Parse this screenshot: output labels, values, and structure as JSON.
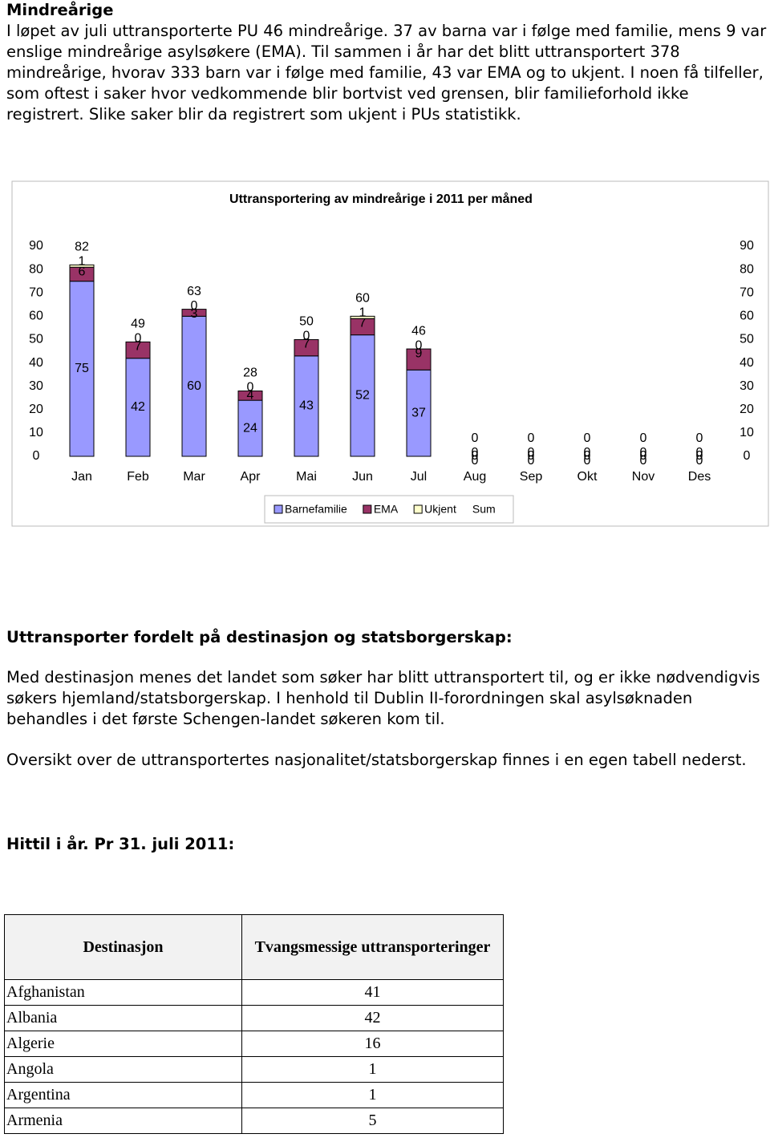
{
  "heading1": "Mindreårige",
  "paragraph1": "I løpet av juli uttransporterte PU 46 mindreårige. 37 av barna var i følge med familie, mens 9 var enslige mindreårige asylsøkere (EMA). Til sammen i år har det blitt uttransportert 378 mindreårige, hvorav 333 barn var i følge med familie, 43 var EMA og to ukjent. I noen få tilfeller, som oftest i saker hvor vedkommende blir bortvist ved grensen, blir familieforhold ikke registrert. Slike saker blir da registrert som ukjent i PUs statistikk.",
  "chart_data": {
    "type": "stacked-bar",
    "title": "Uttransportering av mindreårige i 2011 per måned",
    "categories": [
      "Jan",
      "Feb",
      "Mar",
      "Apr",
      "Mai",
      "Jun",
      "Jul",
      "Aug",
      "Sep",
      "Okt",
      "Nov",
      "Des"
    ],
    "series": [
      {
        "name": "Barnefamilie",
        "color": "#9999ff",
        "values": [
          75,
          42,
          60,
          24,
          43,
          52,
          37,
          0,
          0,
          0,
          0,
          0
        ]
      },
      {
        "name": "EMA",
        "color": "#993366",
        "values": [
          6,
          7,
          3,
          4,
          7,
          7,
          9,
          0,
          0,
          0,
          0,
          0
        ]
      },
      {
        "name": "Ukjent",
        "color": "#ffffcc",
        "values": [
          1,
          0,
          0,
          0,
          0,
          1,
          0,
          0,
          0,
          0,
          0,
          0
        ]
      },
      {
        "name": "Sum",
        "values": [
          82,
          49,
          63,
          28,
          50,
          60,
          46,
          0,
          0,
          0,
          0,
          0
        ]
      }
    ],
    "ylim": [
      0,
      90
    ],
    "yticks": [
      0,
      10,
      20,
      30,
      40,
      50,
      60,
      70,
      80,
      90
    ],
    "y2lim": [
      0,
      90
    ],
    "y2ticks": [
      0,
      10,
      20,
      30,
      40,
      50,
      60,
      70,
      80,
      90
    ],
    "legend": "bottom"
  },
  "heading2": "Uttransporter fordelt på destinasjon og statsborgerskap:",
  "paragraph2": "Med destinasjon menes det landet som søker har blitt uttransportert til, og er ikke nødvendigvis søkers hjemland/statsborgerskap. I henhold til Dublin II-forordningen skal asylsøknaden behandles i det første Schengen-landet søkeren kom til.",
  "paragraph3": "Oversikt over de uttransportertes nasjonalitet/statsborgerskap finnes i en egen tabell nederst.",
  "heading3": "Hittil i år. Pr 31. juli 2011:",
  "table": {
    "columns": [
      "Destinasjon",
      "Tvangsmessige uttransporteringer"
    ],
    "rows": [
      [
        "Afghanistan",
        41
      ],
      [
        "Albania",
        42
      ],
      [
        "Algerie",
        16
      ],
      [
        "Angola",
        1
      ],
      [
        "Argentina",
        1
      ],
      [
        "Armenia",
        5
      ]
    ]
  }
}
